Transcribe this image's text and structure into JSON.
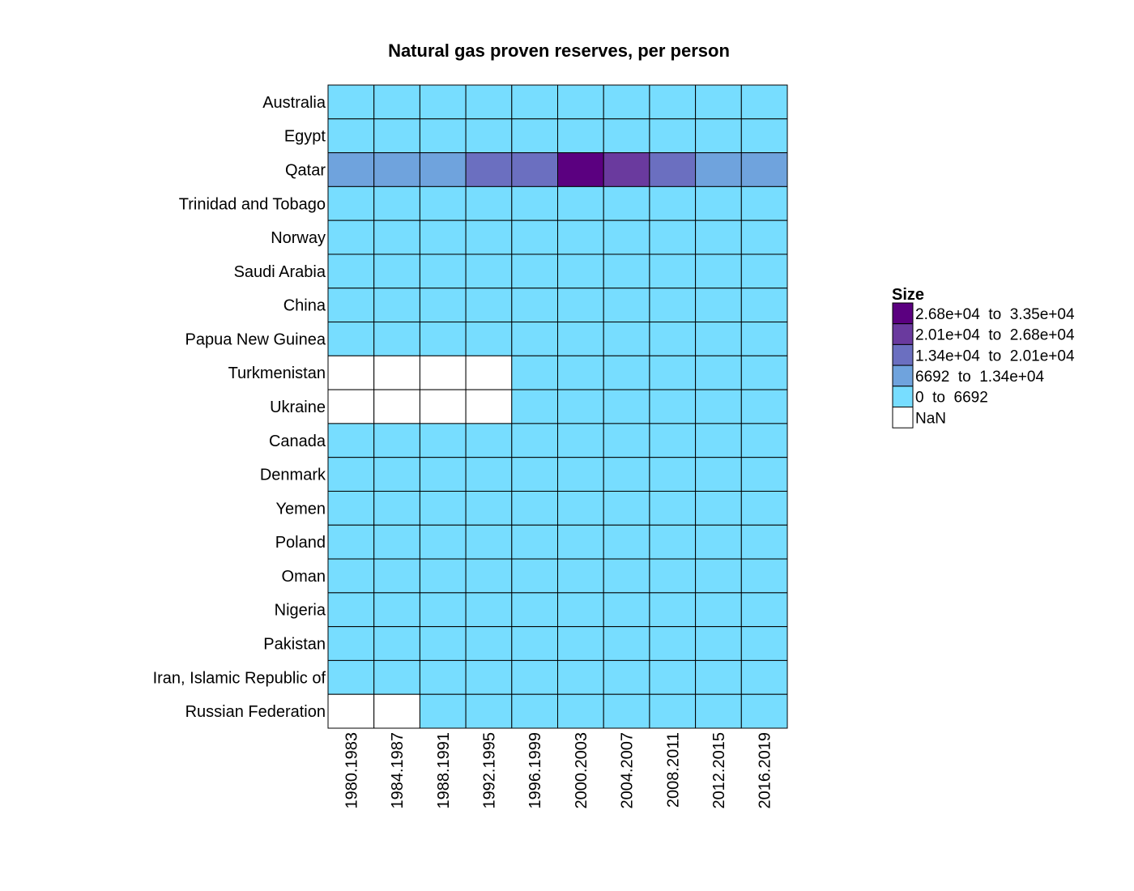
{
  "chart_data": {
    "type": "heatmap",
    "title": "Natural gas proven reserves, per person",
    "xlabel": "",
    "ylabel": "",
    "columns": [
      "1980.1983",
      "1984.1987",
      "1988.1991",
      "1992.1995",
      "1996.1999",
      "2000.2003",
      "2004.2007",
      "2008.2011",
      "2012.2015",
      "2016.2019"
    ],
    "rows": [
      "Australia",
      "Egypt",
      "Qatar",
      "Trinidad and Tobago",
      "Norway",
      "Saudi Arabia",
      "China",
      "Papua New Guinea",
      "Turkmenistan",
      "Ukraine",
      "Canada",
      "Denmark",
      "Yemen",
      "Poland",
      "Oman",
      "Nigeria",
      "Pakistan",
      "Iran, Islamic Republic of",
      "Russian Federation"
    ],
    "bins": [
      {
        "label": "2.68e+04  to  3.35e+04",
        "min": 26800,
        "max": 33500,
        "color": "#5b0080"
      },
      {
        "label": "2.01e+04  to  2.68e+04",
        "min": 20100,
        "max": 26800,
        "color": "#6a3a9e"
      },
      {
        "label": "1.34e+04  to  2.01e+04",
        "min": 13400,
        "max": 20100,
        "color": "#6b6fc0"
      },
      {
        "label": "6692  to  1.34e+04",
        "min": 6692,
        "max": 13400,
        "color": "#6fa3dd"
      },
      {
        "label": "0  to  6692",
        "min": 0,
        "max": 6692,
        "color": "#77ddff"
      },
      {
        "label": "NaN",
        "min": null,
        "max": null,
        "color": "#ffffff"
      }
    ],
    "legend_title": "Size",
    "legend_position": "right",
    "cells": [
      [
        3000,
        3000,
        3000,
        3000,
        3000,
        3000,
        3000,
        3000,
        3000,
        3000
      ],
      [
        1000,
        1000,
        1000,
        1000,
        1000,
        1000,
        1000,
        1000,
        1000,
        1000
      ],
      [
        10000,
        10000,
        10000,
        17000,
        17000,
        30000,
        23000,
        17000,
        10000,
        10000
      ],
      [
        3000,
        3000,
        3000,
        3000,
        3000,
        3000,
        3000,
        3000,
        3000,
        3000
      ],
      [
        2000,
        2000,
        2000,
        2000,
        2000,
        2000,
        2000,
        2000,
        2000,
        2000
      ],
      [
        2000,
        2000,
        2000,
        2000,
        2000,
        2000,
        2000,
        2000,
        2000,
        2000
      ],
      [
        100,
        100,
        100,
        100,
        100,
        100,
        100,
        100,
        100,
        100
      ],
      [
        500,
        500,
        500,
        500,
        500,
        500,
        500,
        500,
        500,
        500
      ],
      [
        null,
        null,
        null,
        null,
        3000,
        3000,
        3000,
        3000,
        3000,
        3000
      ],
      [
        null,
        null,
        null,
        null,
        500,
        500,
        500,
        500,
        500,
        500
      ],
      [
        2000,
        2000,
        2000,
        2000,
        2000,
        2000,
        2000,
        2000,
        2000,
        2000
      ],
      [
        1000,
        1000,
        1000,
        1000,
        1000,
        1000,
        1000,
        1000,
        1000,
        1000
      ],
      [
        500,
        500,
        500,
        500,
        500,
        500,
        500,
        500,
        500,
        500
      ],
      [
        100,
        100,
        100,
        100,
        100,
        100,
        100,
        100,
        100,
        100
      ],
      [
        1000,
        1000,
        1000,
        1000,
        1000,
        1000,
        1000,
        1000,
        1000,
        1000
      ],
      [
        500,
        500,
        500,
        500,
        500,
        500,
        500,
        500,
        500,
        500
      ],
      [
        300,
        300,
        300,
        300,
        300,
        300,
        300,
        300,
        300,
        300
      ],
      [
        3000,
        3000,
        3000,
        3000,
        3000,
        3000,
        3000,
        3000,
        3000,
        3000
      ],
      [
        null,
        null,
        3000,
        3000,
        3000,
        3000,
        3000,
        3000,
        3000,
        3000
      ]
    ]
  }
}
